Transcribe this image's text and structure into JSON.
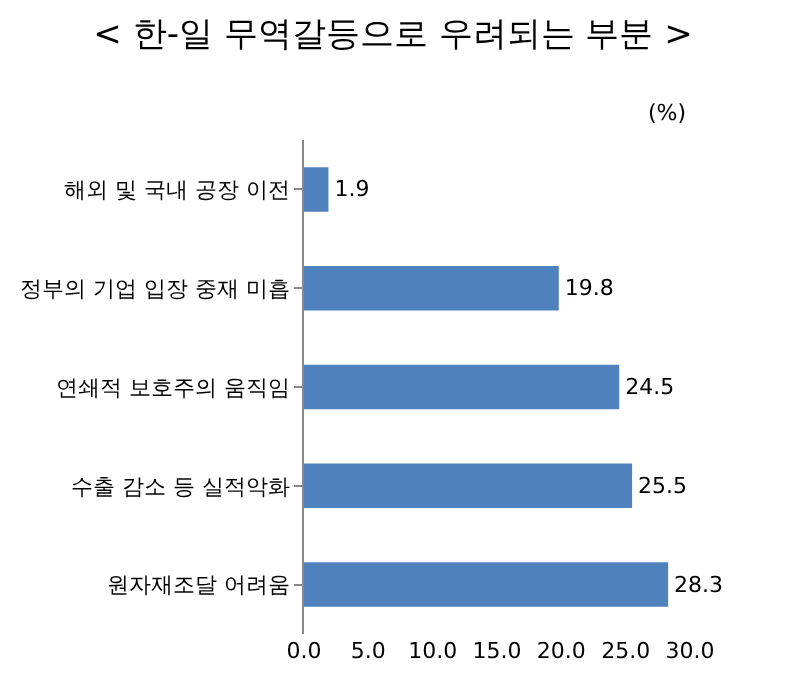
{
  "chart_data": {
    "type": "bar",
    "orientation": "horizontal",
    "title": "< 한-일 무역갈등으로 우려되는 부분 >",
    "categories": [
      "해외 및 국내 공장 이전",
      "정부의 기업 입장 중재 미흡",
      "연쇄적 보호주의 움직임",
      "수출 감소 등 실적악화",
      "원자재조달 어려움"
    ],
    "values": [
      1.9,
      19.8,
      24.5,
      25.5,
      28.3
    ],
    "color": "#4f81bd",
    "data_labels": true,
    "xlim": [
      0,
      30
    ],
    "xticks": [
      {
        "value": 0,
        "label": "0.0"
      },
      {
        "value": 5,
        "label": "5.0"
      },
      {
        "value": 10,
        "label": "10.0"
      },
      {
        "value": 15,
        "label": "15.0"
      },
      {
        "value": 20,
        "label": "20.0"
      },
      {
        "value": 25,
        "label": "25.0"
      },
      {
        "value": 30,
        "label": "30.0"
      }
    ],
    "grid": false,
    "annotations": [
      "(%)"
    ]
  }
}
